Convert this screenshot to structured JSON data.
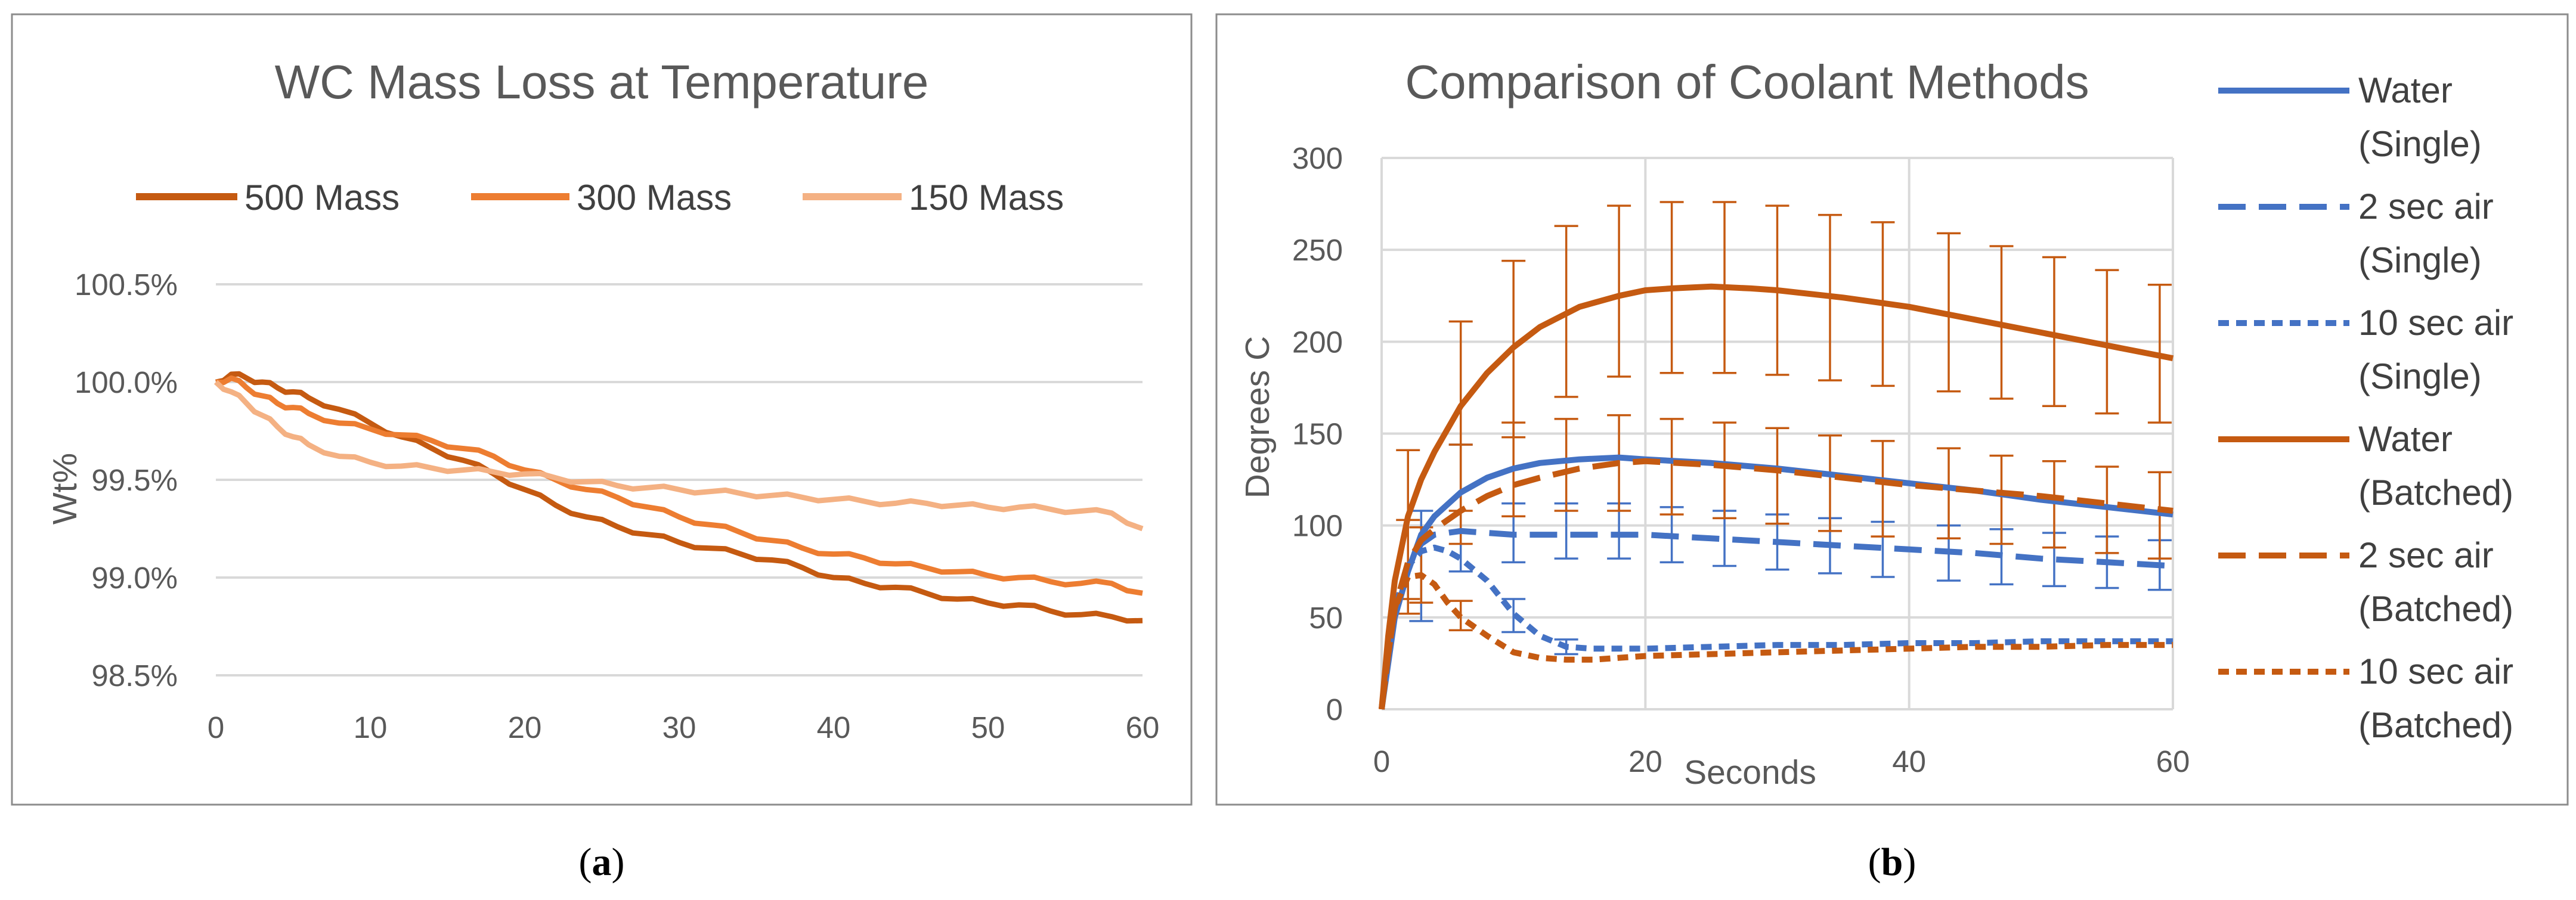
{
  "chart_data": [
    {
      "type": "line",
      "panel_label": "a",
      "title": "WC Mass Loss at Temperature",
      "xlabel": "",
      "ylabel": "Wt%",
      "xlim": [
        0,
        60
      ],
      "ylim": [
        98.5,
        100.5
      ],
      "x_ticks": [
        "0",
        "10",
        "20",
        "30",
        "40",
        "50",
        "60"
      ],
      "y_ticks": [
        "98.5%",
        "99.0%",
        "99.5%",
        "100.0%",
        "100.5%"
      ],
      "legend_position": "top",
      "series": [
        {
          "name": "500 Mass",
          "color": "#c55a11",
          "x": [
            0,
            1,
            2,
            3,
            4,
            5,
            6,
            8,
            10,
            12,
            14,
            16,
            18,
            20,
            22,
            24,
            26,
            28,
            30,
            32,
            34,
            36,
            38,
            40,
            42,
            44,
            46,
            48,
            50,
            52,
            54,
            56,
            58,
            60
          ],
          "y": [
            100.0,
            100.04,
            100.02,
            100.0,
            99.97,
            99.95,
            99.92,
            99.86,
            99.79,
            99.72,
            99.66,
            99.6,
            99.53,
            99.45,
            99.37,
            99.31,
            99.26,
            99.22,
            99.18,
            99.15,
            99.12,
            99.09,
            99.05,
            99.0,
            98.97,
            98.95,
            98.92,
            98.89,
            98.87,
            98.86,
            98.83,
            98.81,
            98.8,
            98.78
          ]
        },
        {
          "name": "300 Mass",
          "color": "#ed7d31",
          "x": [
            0,
            1,
            2,
            3,
            4,
            5,
            6,
            8,
            10,
            12,
            14,
            16,
            18,
            20,
            22,
            24,
            26,
            28,
            30,
            32,
            34,
            36,
            38,
            40,
            42,
            44,
            46,
            48,
            50,
            52,
            54,
            56,
            58,
            60
          ],
          "y": [
            100.0,
            100.02,
            99.97,
            99.93,
            99.89,
            99.87,
            99.84,
            99.79,
            99.76,
            99.73,
            99.7,
            99.66,
            99.62,
            99.55,
            99.5,
            99.45,
            99.41,
            99.36,
            99.31,
            99.27,
            99.23,
            99.19,
            99.15,
            99.12,
            99.1,
            99.07,
            99.05,
            99.03,
            99.01,
            99.0,
            98.98,
            98.97,
            98.97,
            98.92
          ]
        },
        {
          "name": "150 Mass",
          "color": "#f4b183",
          "x": [
            0,
            1,
            2,
            3,
            4,
            5,
            6,
            8,
            10,
            12,
            14,
            16,
            18,
            20,
            22,
            24,
            26,
            28,
            30,
            32,
            34,
            36,
            38,
            40,
            42,
            44,
            46,
            48,
            50,
            52,
            54,
            56,
            58,
            60
          ],
          "y": [
            100.0,
            99.95,
            99.89,
            99.83,
            99.77,
            99.72,
            99.68,
            99.62,
            99.59,
            99.57,
            99.56,
            99.55,
            99.54,
            99.53,
            99.51,
            99.49,
            99.47,
            99.46,
            99.45,
            99.44,
            99.43,
            99.42,
            99.41,
            99.4,
            99.39,
            99.38,
            99.38,
            99.37,
            99.36,
            99.36,
            99.35,
            99.34,
            99.33,
            99.25
          ]
        }
      ]
    },
    {
      "type": "line",
      "panel_label": "b",
      "title": "Comparison of Coolant Methods",
      "xlabel": "Seconds",
      "ylabel": "Degrees C",
      "xlim": [
        0,
        60
      ],
      "ylim": [
        0,
        300
      ],
      "x_ticks": [
        "0",
        "20",
        "40",
        "60"
      ],
      "y_ticks": [
        "0",
        "50",
        "100",
        "150",
        "200",
        "250",
        "300"
      ],
      "legend_position": "right",
      "series": [
        {
          "name_line1": "Water",
          "name_line2": "(Single)",
          "color": "#4472c4",
          "dash": "solid",
          "x": [
            0,
            0.5,
            1,
            2,
            3,
            4,
            6,
            8,
            10,
            12,
            15,
            18,
            20,
            25,
            30,
            35,
            40,
            45,
            50,
            55,
            60
          ],
          "y": [
            0,
            25,
            50,
            75,
            95,
            105,
            118,
            126,
            131,
            134,
            136,
            137,
            136,
            134,
            131,
            127,
            123,
            119,
            114,
            110,
            106
          ]
        },
        {
          "name_line1": "2 sec air",
          "name_line2": "(Single)",
          "color": "#4472c4",
          "dash": "long",
          "x": [
            0,
            0.5,
            1,
            2,
            3,
            4,
            6,
            8,
            10,
            15,
            20,
            25,
            30,
            35,
            40,
            45,
            50,
            55,
            60
          ],
          "y": [
            0,
            30,
            55,
            78,
            90,
            95,
            97,
            96,
            95,
            95,
            95,
            93,
            91,
            89,
            87,
            85,
            82,
            80,
            78
          ]
        },
        {
          "name_line1": "10 sec air",
          "name_line2": "(Single)",
          "color": "#4472c4",
          "dash": "short",
          "x": [
            0,
            0.5,
            1,
            2,
            3,
            4,
            5,
            6,
            8,
            10,
            12,
            14,
            16,
            20,
            25,
            30,
            35,
            40,
            45,
            50,
            55,
            60
          ],
          "y": [
            0,
            30,
            55,
            78,
            86,
            88,
            86,
            82,
            70,
            52,
            40,
            34,
            33,
            33,
            34,
            35,
            35,
            36,
            36,
            37,
            37,
            37
          ]
        },
        {
          "name_line1": "Water",
          "name_line2": "(Batched)",
          "color": "#c55a11",
          "dash": "solid",
          "x": [
            0,
            0.5,
            1,
            2,
            3,
            4,
            6,
            8,
            10,
            12,
            15,
            18,
            20,
            22,
            25,
            28,
            30,
            35,
            40,
            45,
            50,
            55,
            60
          ],
          "y": [
            0,
            40,
            70,
            105,
            125,
            140,
            165,
            183,
            197,
            208,
            219,
            225,
            228,
            229,
            230,
            229,
            228,
            224,
            219,
            212,
            205,
            198,
            191
          ]
        },
        {
          "name_line1": "2 sec air",
          "name_line2": "(Batched)",
          "color": "#c55a11",
          "dash": "long",
          "x": [
            0,
            0.5,
            1,
            2,
            3,
            4,
            6,
            8,
            10,
            12,
            15,
            18,
            20,
            25,
            30,
            35,
            40,
            45,
            50,
            55,
            60
          ],
          "y": [
            0,
            30,
            55,
            80,
            92,
            98,
            108,
            116,
            122,
            126,
            131,
            134,
            135,
            133,
            130,
            126,
            122,
            119,
            116,
            112,
            108
          ]
        },
        {
          "name_line1": "10 sec air",
          "name_line2": "(Batched)",
          "color": "#c55a11",
          "dash": "short",
          "x": [
            0,
            0.5,
            1,
            2,
            3,
            4,
            5,
            6,
            8,
            10,
            12,
            14,
            16,
            20,
            25,
            30,
            35,
            40,
            45,
            50,
            55,
            60
          ],
          "y": [
            0,
            30,
            55,
            72,
            73,
            68,
            58,
            50,
            40,
            31,
            28,
            27,
            27,
            29,
            30,
            31,
            32,
            33,
            34,
            34,
            35,
            35
          ]
        }
      ],
      "error_bars": {
        "color": "#c55a11",
        "points": [
          {
            "x": 2,
            "low": 60,
            "high": 141
          },
          {
            "x": 2,
            "low": 52,
            "high": 103
          },
          {
            "x": 3,
            "low": 58,
            "high": 99
          },
          {
            "x": 6,
            "low": 108,
            "high": 211
          },
          {
            "x": 6,
            "low": 90,
            "high": 144
          },
          {
            "x": 6,
            "low": 43,
            "high": 59
          },
          {
            "x": 10,
            "low": 148,
            "high": 244
          },
          {
            "x": 10,
            "low": 105,
            "high": 156
          },
          {
            "x": 14,
            "low": 170,
            "high": 263
          },
          {
            "x": 14,
            "low": 108,
            "high": 158
          },
          {
            "x": 18,
            "low": 181,
            "high": 274
          },
          {
            "x": 18,
            "low": 108,
            "high": 160
          },
          {
            "x": 22,
            "low": 183,
            "high": 276
          },
          {
            "x": 22,
            "low": 106,
            "high": 158
          },
          {
            "x": 26,
            "low": 183,
            "high": 276
          },
          {
            "x": 26,
            "low": 104,
            "high": 156
          },
          {
            "x": 30,
            "low": 182,
            "high": 274
          },
          {
            "x": 30,
            "low": 101,
            "high": 153
          },
          {
            "x": 34,
            "low": 179,
            "high": 269
          },
          {
            "x": 34,
            "low": 97,
            "high": 149
          },
          {
            "x": 38,
            "low": 176,
            "high": 265
          },
          {
            "x": 38,
            "low": 94,
            "high": 146
          },
          {
            "x": 43,
            "low": 173,
            "high": 259
          },
          {
            "x": 43,
            "low": 93,
            "high": 142
          },
          {
            "x": 47,
            "low": 169,
            "high": 252
          },
          {
            "x": 47,
            "low": 90,
            "high": 138
          },
          {
            "x": 51,
            "low": 165,
            "high": 246
          },
          {
            "x": 51,
            "low": 88,
            "high": 135
          },
          {
            "x": 55,
            "low": 161,
            "high": 239
          },
          {
            "x": 55,
            "low": 85,
            "high": 132
          },
          {
            "x": 59,
            "low": 156,
            "high": 231
          },
          {
            "x": 59,
            "low": 82,
            "high": 129
          }
        ]
      },
      "blue_error_bars": {
        "color": "#4472c4",
        "points": [
          {
            "x": 3,
            "low": 48,
            "high": 108
          },
          {
            "x": 6,
            "low": 75,
            "high": 144
          },
          {
            "x": 10,
            "low": 42,
            "high": 60
          },
          {
            "x": 10,
            "low": 80,
            "high": 112
          },
          {
            "x": 14,
            "low": 30,
            "high": 38
          },
          {
            "x": 14,
            "low": 82,
            "high": 112
          },
          {
            "x": 18,
            "low": 82,
            "high": 112
          },
          {
            "x": 22,
            "low": 80,
            "high": 110
          },
          {
            "x": 26,
            "low": 78,
            "high": 108
          },
          {
            "x": 30,
            "low": 76,
            "high": 106
          },
          {
            "x": 34,
            "low": 74,
            "high": 104
          },
          {
            "x": 38,
            "low": 72,
            "high": 102
          },
          {
            "x": 43,
            "low": 70,
            "high": 100
          },
          {
            "x": 47,
            "low": 68,
            "high": 98
          },
          {
            "x": 51,
            "low": 67,
            "high": 96
          },
          {
            "x": 55,
            "low": 66,
            "high": 94
          },
          {
            "x": 59,
            "low": 65,
            "high": 92
          }
        ]
      }
    }
  ]
}
